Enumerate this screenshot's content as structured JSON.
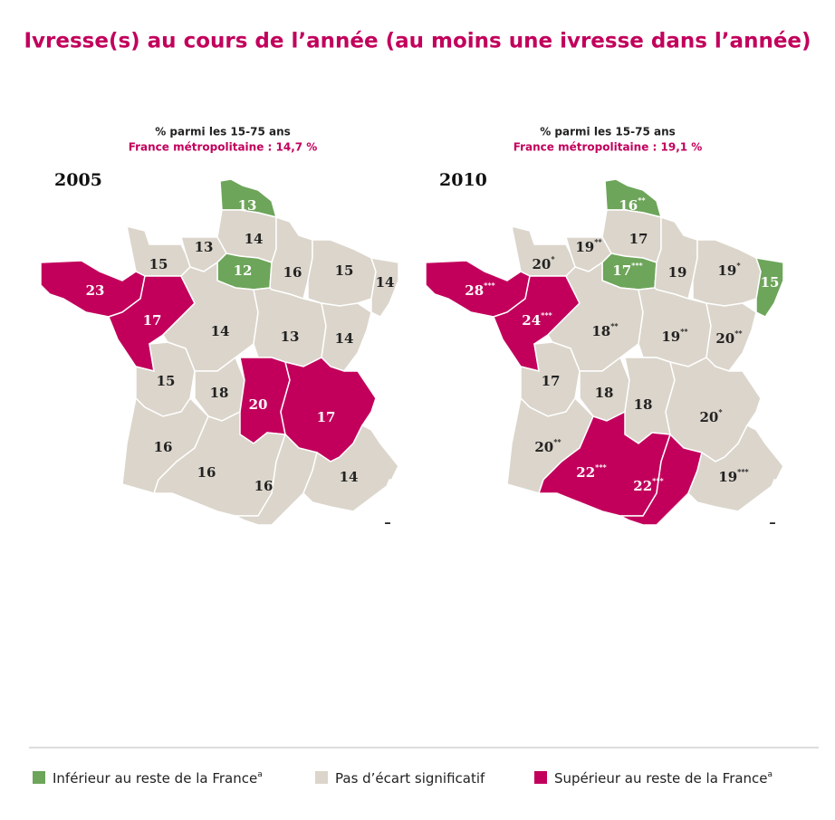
{
  "title": "Ivresse(s) au cours de l’année (au moins une ivresse dans l’année)",
  "maps": [
    {
      "year": "2005",
      "subtitle": "% parmi les 15-75 ans",
      "france": "France métropolitaine : 14,7 %",
      "regions": [
        {
          "value": 13,
          "group": 0
        },
        {
          "value": 14,
          "group": 1
        },
        {
          "value": 13,
          "group": 1
        },
        {
          "value": 15,
          "group": 1
        },
        {
          "value": 12,
          "group": 0
        },
        {
          "value": 16,
          "group": 1
        },
        {
          "value": 15,
          "group": 1
        },
        {
          "value": 14,
          "group": 1
        },
        {
          "value": 23,
          "group": 2
        },
        {
          "value": 17,
          "group": 2
        },
        {
          "value": 14,
          "group": 1
        },
        {
          "value": 13,
          "group": 1
        },
        {
          "value": 14,
          "group": 1
        },
        {
          "value": 15,
          "group": 1
        },
        {
          "value": 18,
          "group": 1
        },
        {
          "value": 20,
          "group": 2
        },
        {
          "value": 17,
          "group": 2
        },
        {
          "value": 16,
          "group": 1
        },
        {
          "value": 16,
          "group": 1
        },
        {
          "value": 16,
          "group": 1
        },
        {
          "value": 14,
          "group": 1
        },
        {
          "value": "–"
        }
      ]
    },
    {
      "year": "2010",
      "subtitle": "% parmi les 15-75 ans",
      "france": "France métropolitaine : 19,1 %",
      "regions": [
        {
          "value": 16,
          "stars": "**",
          "group": 0
        },
        {
          "value": 17,
          "group": 1
        },
        {
          "value": 19,
          "stars": "**",
          "group": 1
        },
        {
          "value": 20,
          "stars": "*",
          "group": 1
        },
        {
          "value": 17,
          "stars": "***",
          "group": 0
        },
        {
          "value": 19,
          "group": 1
        },
        {
          "value": 19,
          "stars": "*",
          "group": 1
        },
        {
          "value": 15,
          "group": 0
        },
        {
          "value": 28,
          "stars": "***",
          "group": 2
        },
        {
          "value": 24,
          "stars": "***",
          "group": 2
        },
        {
          "value": 18,
          "stars": "**",
          "group": 1
        },
        {
          "value": 19,
          "stars": "**",
          "group": 1
        },
        {
          "value": 20,
          "stars": "**",
          "group": 1
        },
        {
          "value": 17,
          "group": 1
        },
        {
          "value": 18,
          "group": 1
        },
        {
          "value": 18,
          "group": 1
        },
        {
          "value": 20,
          "stars": "*",
          "group": 1
        },
        {
          "value": 20,
          "stars": "**",
          "group": 1
        },
        {
          "value": 22,
          "stars": "***",
          "group": 2
        },
        {
          "value": 22,
          "stars": "***",
          "group": 2
        },
        {
          "value": 19,
          "stars": "***",
          "group": 1
        },
        {
          "value": "–"
        }
      ]
    }
  ],
  "legend": [
    {
      "label": "Inférieur au reste de la France",
      "note": "a",
      "color": "#6da55a"
    },
    {
      "label": "Pas d’écart significatif",
      "color": "#dbd5cb"
    },
    {
      "label": "Supérieur au reste de la France",
      "note": "a",
      "color": "#c2005c"
    }
  ]
}
